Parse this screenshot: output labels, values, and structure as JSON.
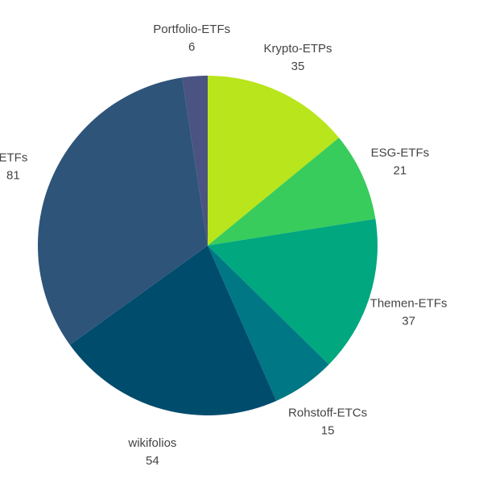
{
  "chart_data": {
    "type": "pie",
    "start_angle_deg": 0,
    "direction": "clockwise",
    "legend": "none",
    "slices": [
      {
        "label": "Krypto-ETPs",
        "value": 35,
        "color": "#b8e51c"
      },
      {
        "label": "ESG-ETFs",
        "value": 21,
        "color": "#38cc5c"
      },
      {
        "label": "Themen-ETFs",
        "value": 37,
        "color": "#00a77f"
      },
      {
        "label": "Rohstoff-ETCs",
        "value": 15,
        "color": "#007784"
      },
      {
        "label": "wikifolios",
        "value": 54,
        "color": "#004c6d"
      },
      {
        "label": "ETFs",
        "value": 81,
        "color": "#2e5479"
      },
      {
        "label": "Portfolio-ETFs",
        "value": 6,
        "color": "#4a5382"
      }
    ]
  }
}
